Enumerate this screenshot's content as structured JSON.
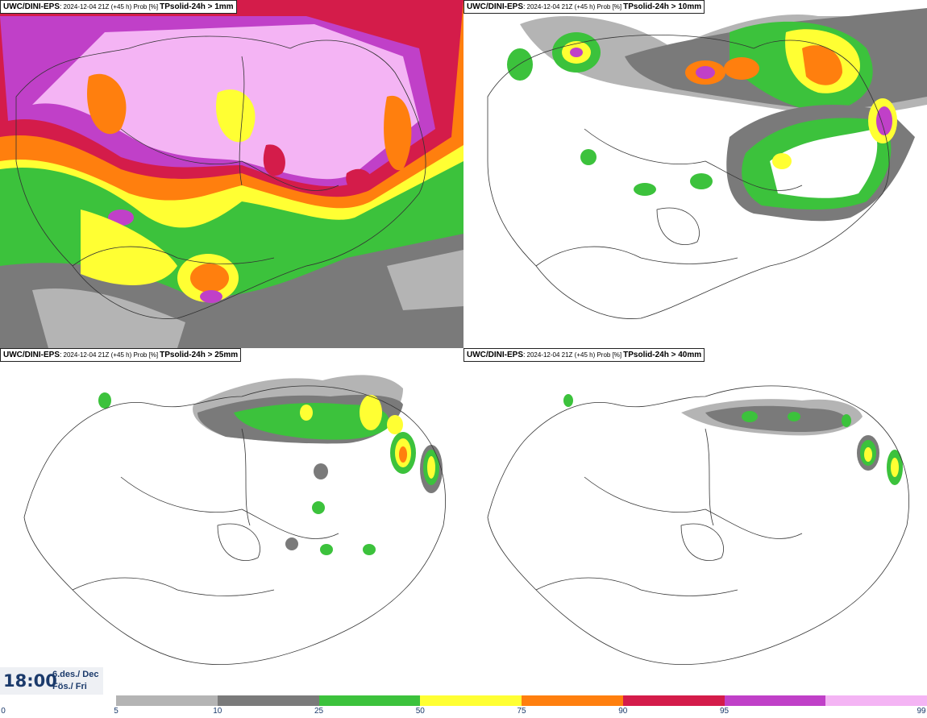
{
  "model": "UWC/DINI-EPS",
  "run": "2024-12-04 21Z (+45 h) Prob [%]",
  "panels": [
    {
      "param": "TPsolid-24h > 1mm"
    },
    {
      "param": "TPsolid-24h > 10mm"
    },
    {
      "param": "TPsolid-24h > 25mm"
    },
    {
      "param": "TPsolid-24h > 40mm"
    }
  ],
  "time": {
    "clock": "18:00",
    "date": "6.des./ Dec",
    "day": "Fös./ Fri"
  },
  "legend": {
    "ticks": [
      "0",
      "5",
      "10",
      "25",
      "50",
      "75",
      "90",
      "95",
      "99"
    ],
    "colors": [
      "#b4b4b4",
      "#7a7a7a",
      "#3cc23c",
      "#ffff33",
      "#ff7f0e",
      "#d41c4a",
      "#c040c8",
      "#f4b4f4"
    ]
  }
}
